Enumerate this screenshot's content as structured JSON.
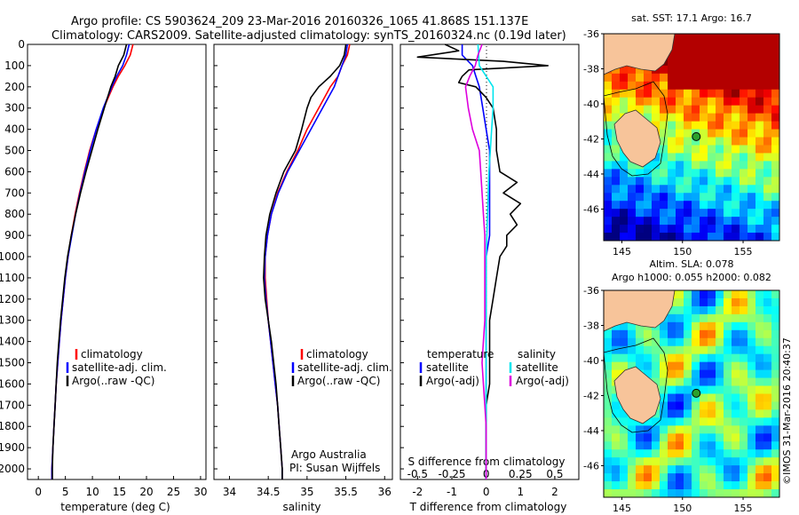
{
  "header": {
    "line1": "Argo profile: CS 5903624_209 23-Mar-2016 20160326_1065 41.868S 151.137E",
    "line2": "Climatology: CARS2009. Satellite-adjusted climatology: synTS_20160324.nc (0.19d later)"
  },
  "colors": {
    "climatology": "#ff0000",
    "satellite": "#0000ff",
    "argo": "#000000",
    "sat_temp": "#0000ff",
    "sat_sal": "#00e5ee",
    "argo_sal_adj": "#dd00dd",
    "land": "#f7c49a"
  },
  "depth_axis": {
    "min": 0,
    "max": 2050,
    "ticks": [
      "0",
      "100",
      "200",
      "300",
      "400",
      "500",
      "600",
      "700",
      "800",
      "900",
      "1000",
      "1100",
      "1200",
      "1300",
      "1400",
      "1500",
      "1600",
      "1700",
      "1800",
      "1900",
      "2000"
    ]
  },
  "legend_left": [
    "climatology",
    "satellite-adj. clim.",
    "Argo(..raw -QC)"
  ],
  "credits": {
    "org": "Argo Australia",
    "pi": "PI: Susan Wijffels"
  },
  "diff_legend": {
    "temp_head": "temperature",
    "sal_head": "salinity",
    "items": [
      "satellite",
      "Argo(-adj)",
      "satellite",
      "Argo(-adj)"
    ]
  },
  "chart_data": [
    {
      "type": "line",
      "name": "temperature",
      "xlabel": "temperature (deg C)",
      "xlim": [
        -2,
        31
      ],
      "xticks": [
        "0",
        "5",
        "10",
        "15",
        "20",
        "25",
        "30"
      ],
      "ylim": [
        0,
        2050
      ],
      "series": [
        {
          "name": "climatology",
          "depth": [
            0,
            50,
            100,
            150,
            200,
            300,
            400,
            500,
            600,
            700,
            800,
            900,
            1000,
            1100,
            1200,
            1300,
            1400,
            1500,
            1600,
            1700,
            1800,
            1900,
            2000,
            2050
          ],
          "values": [
            17.5,
            17.0,
            16.0,
            14.8,
            13.8,
            12.1,
            10.7,
            9.5,
            8.5,
            7.6,
            6.8,
            6.1,
            5.5,
            5.0,
            4.6,
            4.2,
            3.9,
            3.6,
            3.3,
            3.1,
            2.9,
            2.7,
            2.5,
            2.5
          ]
        },
        {
          "name": "satellite-adj. clim.",
          "depth": [
            0,
            50,
            100,
            150,
            200,
            300,
            400,
            500,
            600,
            700,
            800,
            900,
            1000,
            1100,
            1200,
            1300,
            1400,
            1500,
            1600,
            1700,
            1800,
            1900,
            2000,
            2050
          ],
          "values": [
            16.8,
            16.3,
            15.6,
            14.5,
            13.6,
            12.0,
            10.7,
            9.6,
            8.6,
            7.7,
            6.9,
            6.2,
            5.5,
            5.0,
            4.6,
            4.2,
            3.9,
            3.6,
            3.3,
            3.1,
            2.9,
            2.7,
            2.5,
            2.5
          ]
        },
        {
          "name": "Argo(..raw -QC)",
          "depth": [
            0,
            50,
            100,
            150,
            200,
            300,
            400,
            500,
            600,
            700,
            800,
            900,
            1000,
            1100,
            1200,
            1300,
            1400,
            1500,
            1600,
            1700,
            1800,
            1900,
            2000,
            2050
          ],
          "values": [
            16.3,
            15.8,
            14.8,
            14.2,
            13.4,
            12.2,
            11.0,
            9.9,
            8.8,
            7.8,
            6.9,
            6.1,
            5.4,
            4.9,
            4.5,
            4.1,
            3.8,
            3.5,
            3.3,
            3.1,
            2.9,
            2.7,
            2.6,
            2.6
          ]
        }
      ]
    },
    {
      "type": "line",
      "name": "salinity",
      "xlabel": "salinity",
      "xlim": [
        33.8,
        36.1
      ],
      "xticks": [
        "34",
        "34.5",
        "35",
        "35.5",
        "36"
      ],
      "ylim": [
        0,
        2050
      ],
      "series": [
        {
          "name": "climatology",
          "depth": [
            0,
            50,
            100,
            150,
            200,
            300,
            400,
            500,
            600,
            700,
            800,
            900,
            1000,
            1100,
            1200,
            1300,
            1400,
            1500,
            1600,
            1700,
            1800,
            1900,
            2000,
            2050
          ],
          "values": [
            35.55,
            35.52,
            35.45,
            35.4,
            35.3,
            35.15,
            35.0,
            34.88,
            34.74,
            34.62,
            34.54,
            34.49,
            34.46,
            34.46,
            34.48,
            34.5,
            34.53,
            34.56,
            34.59,
            34.62,
            34.64,
            34.66,
            34.68,
            34.68
          ]
        },
        {
          "name": "satellite-adj. clim.",
          "depth": [
            0,
            50,
            100,
            150,
            200,
            300,
            400,
            500,
            600,
            700,
            800,
            900,
            1000,
            1100,
            1200,
            1300,
            1400,
            1500,
            1600,
            1700,
            1800,
            1900,
            2000,
            2050
          ],
          "values": [
            35.52,
            35.5,
            35.45,
            35.4,
            35.35,
            35.2,
            35.05,
            34.9,
            34.75,
            34.63,
            34.54,
            34.49,
            34.46,
            34.45,
            34.47,
            34.5,
            34.53,
            34.56,
            34.59,
            34.62,
            34.64,
            34.66,
            34.68,
            34.68
          ]
        },
        {
          "name": "Argo(..raw -QC)",
          "depth": [
            0,
            50,
            100,
            150,
            200,
            250,
            300,
            400,
            500,
            600,
            700,
            800,
            900,
            1000,
            1100,
            1200,
            1300,
            1400,
            1500,
            1600,
            1700,
            1800,
            1900,
            2000,
            2050
          ],
          "values": [
            35.5,
            35.48,
            35.42,
            35.3,
            35.15,
            35.05,
            35.0,
            34.93,
            34.85,
            34.7,
            34.6,
            34.52,
            34.47,
            34.45,
            34.44,
            34.46,
            34.5,
            34.54,
            34.57,
            34.6,
            34.62,
            34.64,
            34.66,
            34.68,
            34.68
          ]
        }
      ]
    },
    {
      "type": "line",
      "name": "difference",
      "xlabel": "T difference from climatology",
      "xlabel2": "S difference from climatology",
      "xlim": [
        -2.5,
        2.7
      ],
      "xticks": [
        "-2",
        "-1",
        "0",
        "1",
        "2"
      ],
      "xticks_s": [
        "-0.5",
        "-0.25",
        "0",
        "0.25",
        "0.5"
      ],
      "ylim": [
        0,
        2050
      ],
      "series": [
        {
          "name": "temperature satellite",
          "depth": [
            0,
            50,
            100,
            150,
            200,
            300,
            400,
            500,
            600,
            700,
            800,
            900,
            1000,
            1200,
            1400,
            1600,
            1800,
            2000,
            2050
          ],
          "values": [
            -0.7,
            -0.7,
            -0.4,
            -0.3,
            -0.2,
            -0.1,
            0.0,
            0.1,
            0.1,
            0.1,
            0.1,
            0.1,
            0.0,
            0.0,
            0.0,
            0.0,
            0.0,
            0.0,
            0.0
          ]
        },
        {
          "name": "temperature Argo(-adj)",
          "depth": [
            0,
            30,
            60,
            80,
            100,
            120,
            150,
            180,
            200,
            250,
            300,
            400,
            500,
            600,
            650,
            700,
            750,
            800,
            850,
            900,
            950,
            1000,
            1100,
            1200,
            1300,
            1400,
            1500,
            1600,
            1700,
            1800,
            1900,
            2000,
            2050
          ],
          "values": [
            -1.2,
            -0.8,
            -2.0,
            0.5,
            1.8,
            -0.5,
            -0.7,
            -0.8,
            -0.3,
            0.0,
            0.2,
            0.3,
            0.3,
            0.4,
            0.9,
            0.5,
            1.0,
            0.7,
            0.9,
            0.6,
            0.6,
            0.4,
            0.3,
            0.2,
            0.1,
            0.1,
            0.1,
            0.1,
            0.0,
            0.0,
            0.0,
            0.0,
            0.0
          ]
        },
        {
          "name": "salinity satellite",
          "depth": [
            0,
            100,
            200,
            300,
            400,
            500,
            600,
            800,
            1000,
            1200,
            1400,
            1600,
            1800,
            2000,
            2050
          ],
          "values": [
            -0.06,
            -0.05,
            0.05,
            0.05,
            0.04,
            0.03,
            0.02,
            0.01,
            0.0,
            0.0,
            0.0,
            0.0,
            0.0,
            0.0,
            0.0
          ]
        },
        {
          "name": "salinity Argo(-adj)",
          "depth": [
            0,
            50,
            100,
            150,
            200,
            300,
            400,
            500,
            600,
            700,
            800,
            900,
            1000,
            1100,
            1200,
            1300,
            1400,
            1500,
            1600,
            1700,
            1800,
            1900,
            2000,
            2050
          ],
          "values": [
            -0.03,
            -0.06,
            -0.08,
            -0.12,
            -0.15,
            -0.13,
            -0.1,
            -0.05,
            -0.04,
            -0.03,
            -0.02,
            -0.01,
            -0.01,
            -0.01,
            -0.01,
            -0.01,
            -0.02,
            -0.03,
            -0.02,
            -0.01,
            0.0,
            0.0,
            0.0,
            0.0
          ]
        }
      ]
    },
    {
      "type": "heatmap",
      "name": "sst_map",
      "title": "sat. SST: 17.1 Argo: 16.7",
      "xlim": [
        143.5,
        158
      ],
      "ylim": [
        -47.8,
        -36
      ],
      "xticks": [
        "145",
        "150",
        "155"
      ],
      "yticks": [
        "-36",
        "-38",
        "-40",
        "-42",
        "-44",
        "-46"
      ],
      "argo_marker": {
        "lon": 151.137,
        "lat": -41.868
      }
    },
    {
      "type": "heatmap",
      "name": "sla_map",
      "title": "Altim. SLA: 0.078",
      "title2": "Argo h1000: 0.055 h2000: 0.082",
      "xlim": [
        143.5,
        158
      ],
      "ylim": [
        -47.8,
        -36
      ],
      "xticks": [
        "145",
        "150",
        "155"
      ],
      "yticks": [
        "-36",
        "-38",
        "-40",
        "-42",
        "-44",
        "-46"
      ],
      "argo_marker": {
        "lon": 151.137,
        "lat": -41.868
      }
    }
  ],
  "side_credit": "©IMOS 31-Mar-2016 20:40:37"
}
